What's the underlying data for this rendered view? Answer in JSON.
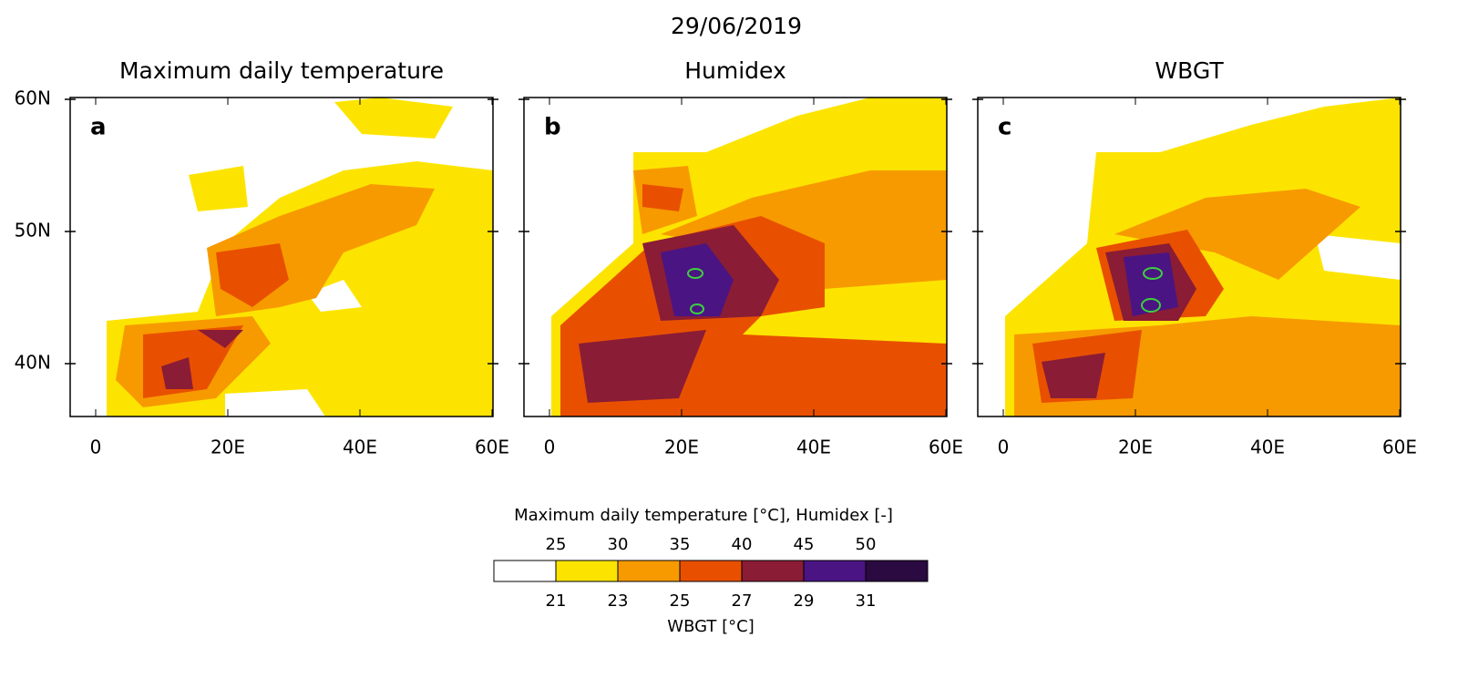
{
  "title": "29/06/2019",
  "panels": [
    {
      "title": "Maximum daily temperature",
      "label": "a"
    },
    {
      "title": "Humidex",
      "label": "b"
    },
    {
      "title": "WBGT",
      "label": "c"
    }
  ],
  "axes": {
    "ytick_labels": [
      "60N",
      "50N",
      "40N"
    ],
    "xtick_labels": [
      "0",
      "20E",
      "40E",
      "60E"
    ]
  },
  "colorbar": {
    "title": "Maximum daily temperature [°C], Humidex [-]",
    "top_labels": [
      "25",
      "30",
      "35",
      "40",
      "45",
      "50"
    ],
    "bottom_labels": [
      "21",
      "23",
      "25",
      "27",
      "29",
      "31"
    ],
    "bottom_title": "WBGT [°C]",
    "colors": [
      "#ffffff",
      "#fde400",
      "#f79a00",
      "#e85000",
      "#8a1c35",
      "#4a1483",
      "#2a0a40"
    ]
  }
}
